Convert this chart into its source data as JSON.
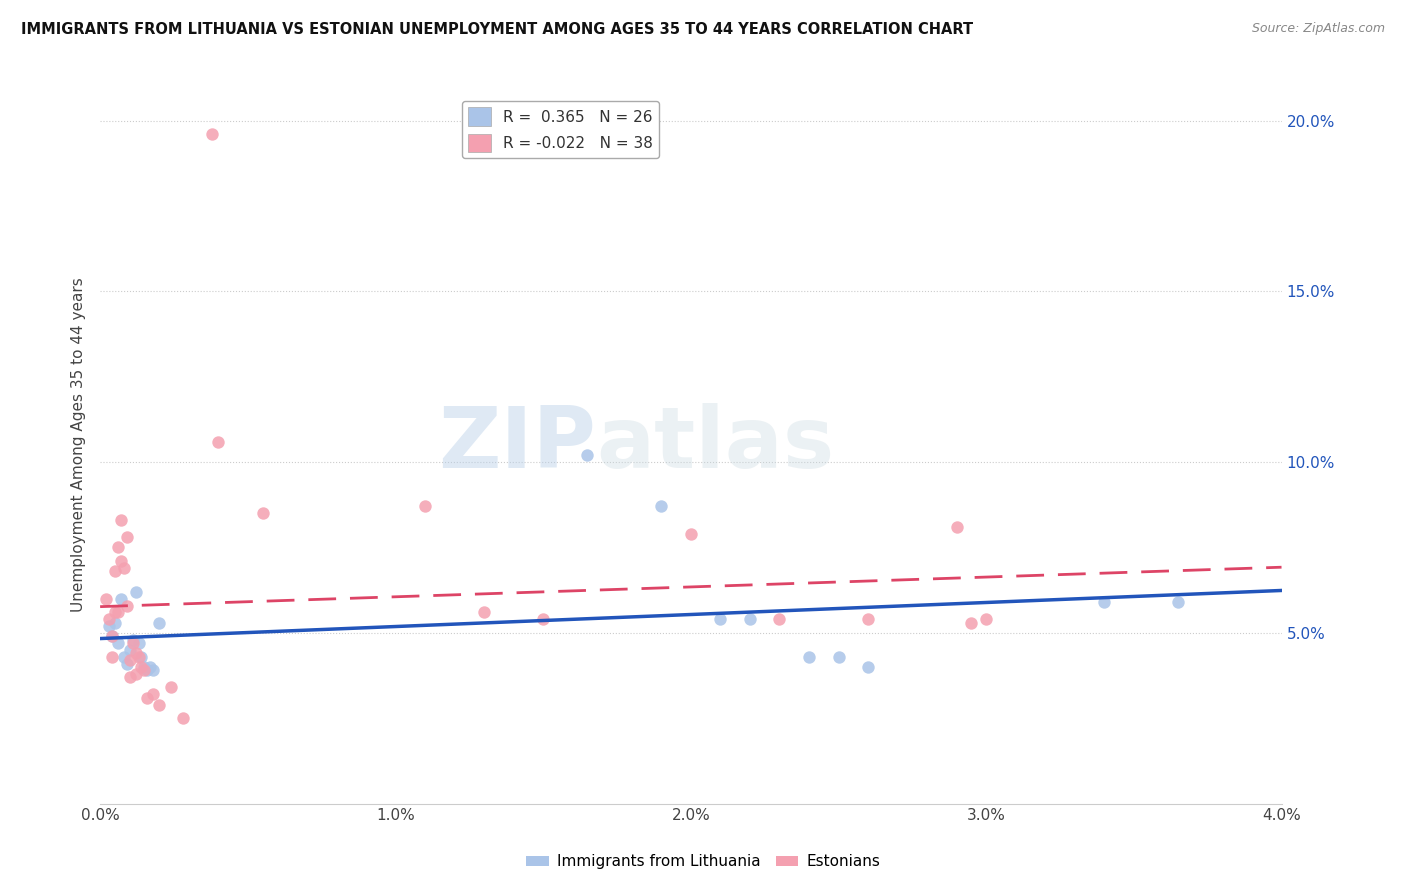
{
  "title": "IMMIGRANTS FROM LITHUANIA VS ESTONIAN UNEMPLOYMENT AMONG AGES 35 TO 44 YEARS CORRELATION CHART",
  "source": "Source: ZipAtlas.com",
  "ylabel": "Unemployment Among Ages 35 to 44 years",
  "xlim": [
    0.0,
    0.04
  ],
  "ylim": [
    0.0,
    0.21
  ],
  "right_yticks": [
    0.05,
    0.1,
    0.15,
    0.2
  ],
  "right_yticklabels": [
    "5.0%",
    "10.0%",
    "15.0%",
    "20.0%"
  ],
  "xticks": [
    0.0,
    0.01,
    0.02,
    0.03,
    0.04
  ],
  "xticklabels": [
    "0.0%",
    "1.0%",
    "2.0%",
    "3.0%",
    "4.0%"
  ],
  "watermark_zip": "ZIP",
  "watermark_atlas": "atlas",
  "legend_blue_r": "0.365",
  "legend_blue_n": "26",
  "legend_pink_r": "-0.022",
  "legend_pink_n": "38",
  "blue_color": "#aac4e8",
  "pink_color": "#f4a0b0",
  "blue_line_color": "#2255bb",
  "pink_line_color": "#dd4466",
  "blue_scatter": [
    [
      0.0003,
      0.052
    ],
    [
      0.0004,
      0.049
    ],
    [
      0.0005,
      0.053
    ],
    [
      0.0006,
      0.047
    ],
    [
      0.0007,
      0.06
    ],
    [
      0.0008,
      0.043
    ],
    [
      0.0009,
      0.041
    ],
    [
      0.001,
      0.045
    ],
    [
      0.0011,
      0.048
    ],
    [
      0.0012,
      0.062
    ],
    [
      0.0013,
      0.047
    ],
    [
      0.0014,
      0.043
    ],
    [
      0.0015,
      0.04
    ],
    [
      0.0016,
      0.039
    ],
    [
      0.0017,
      0.04
    ],
    [
      0.0018,
      0.039
    ],
    [
      0.002,
      0.053
    ],
    [
      0.0165,
      0.102
    ],
    [
      0.019,
      0.087
    ],
    [
      0.021,
      0.054
    ],
    [
      0.022,
      0.054
    ],
    [
      0.024,
      0.043
    ],
    [
      0.025,
      0.043
    ],
    [
      0.026,
      0.04
    ],
    [
      0.034,
      0.059
    ],
    [
      0.0365,
      0.059
    ]
  ],
  "pink_scatter": [
    [
      0.0002,
      0.06
    ],
    [
      0.0003,
      0.054
    ],
    [
      0.0004,
      0.049
    ],
    [
      0.0004,
      0.043
    ],
    [
      0.0005,
      0.068
    ],
    [
      0.0005,
      0.056
    ],
    [
      0.0006,
      0.075
    ],
    [
      0.0006,
      0.056
    ],
    [
      0.0007,
      0.083
    ],
    [
      0.0007,
      0.071
    ],
    [
      0.0008,
      0.069
    ],
    [
      0.0009,
      0.058
    ],
    [
      0.0009,
      0.078
    ],
    [
      0.001,
      0.042
    ],
    [
      0.001,
      0.037
    ],
    [
      0.0011,
      0.047
    ],
    [
      0.0012,
      0.044
    ],
    [
      0.0012,
      0.038
    ],
    [
      0.0013,
      0.043
    ],
    [
      0.0014,
      0.04
    ],
    [
      0.0015,
      0.039
    ],
    [
      0.0016,
      0.031
    ],
    [
      0.0018,
      0.032
    ],
    [
      0.002,
      0.029
    ],
    [
      0.0024,
      0.034
    ],
    [
      0.0028,
      0.025
    ],
    [
      0.004,
      0.106
    ],
    [
      0.0055,
      0.085
    ],
    [
      0.011,
      0.087
    ],
    [
      0.013,
      0.056
    ],
    [
      0.015,
      0.054
    ],
    [
      0.02,
      0.079
    ],
    [
      0.023,
      0.054
    ],
    [
      0.026,
      0.054
    ],
    [
      0.029,
      0.081
    ],
    [
      0.0295,
      0.053
    ],
    [
      0.03,
      0.054
    ],
    [
      0.0038,
      0.196
    ]
  ]
}
